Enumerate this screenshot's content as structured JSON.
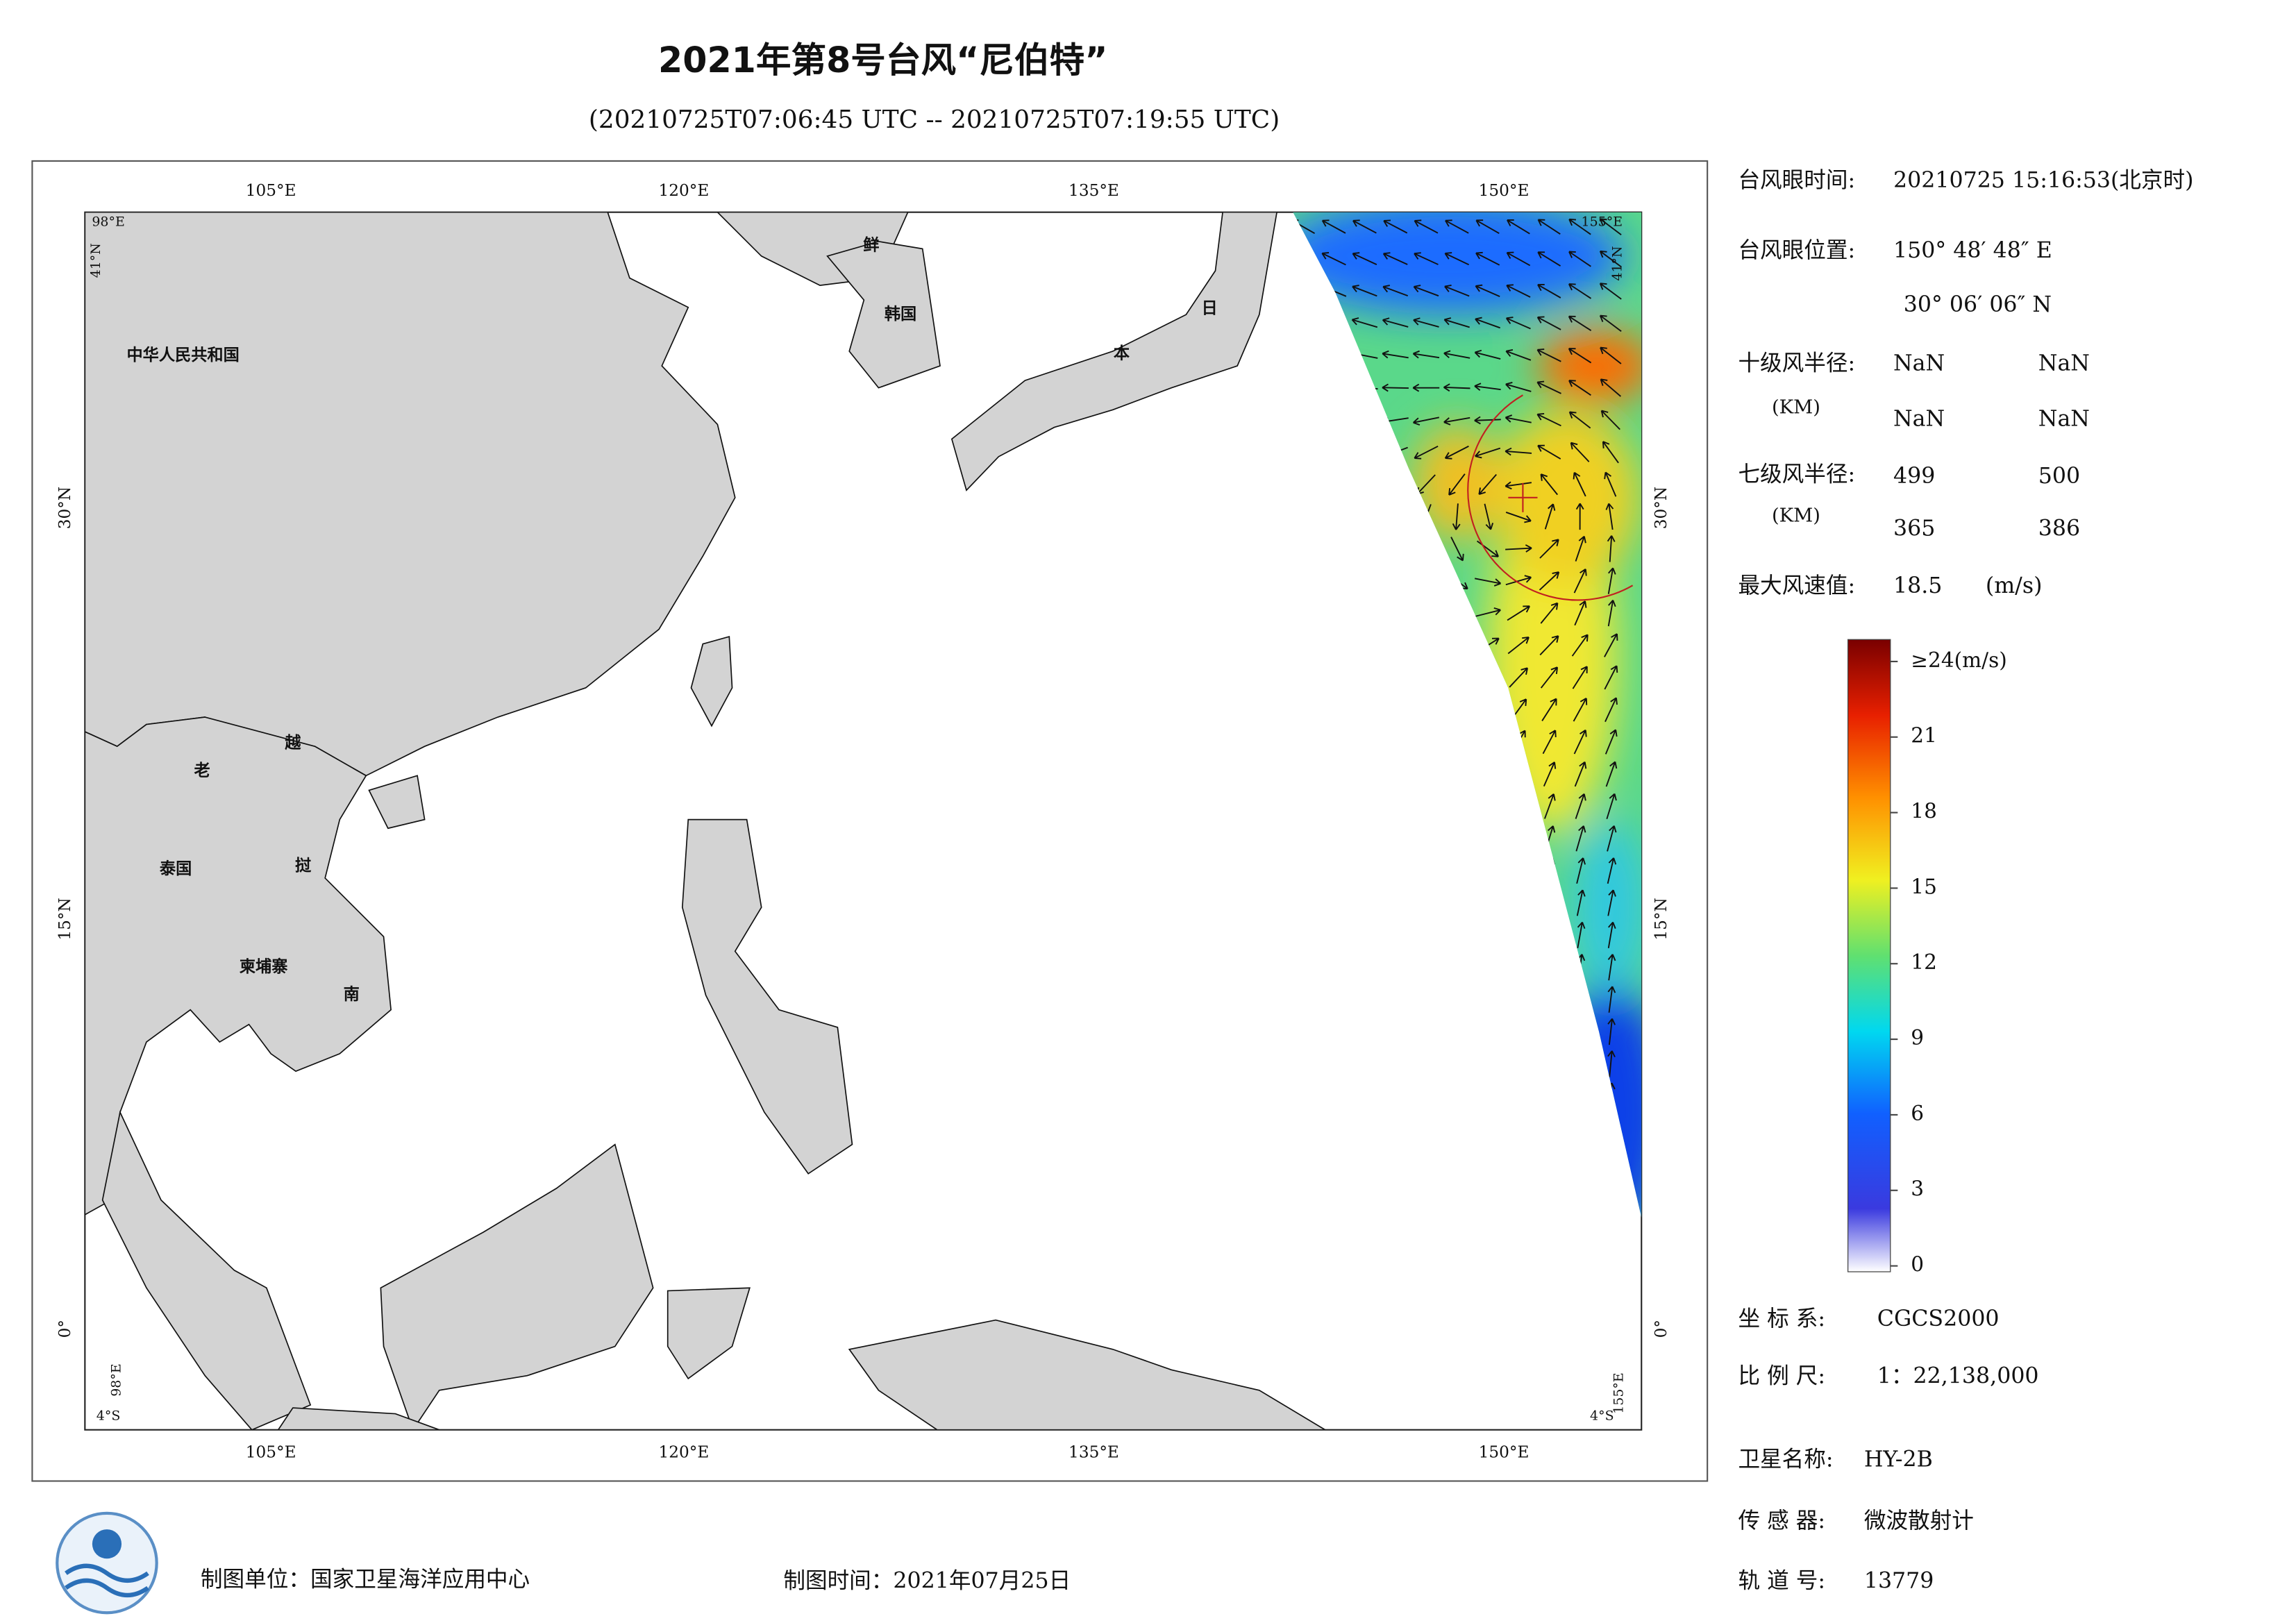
{
  "header": {
    "title": "2021年第8号台风“尼伯特”",
    "subtitle": "(20210725T07:06:45 UTC -- 20210725T07:19:55 UTC)"
  },
  "map": {
    "lon_labels": [
      "105°E",
      "120°E",
      "135°E",
      "150°E"
    ],
    "lat_labels": [
      "30°N",
      "15°N",
      "0°"
    ],
    "corner_labels": [
      "98°E",
      "41°N",
      "155°E",
      "41°N",
      "98°E",
      "4°S",
      "155°E",
      "4°S"
    ],
    "place_labels": [
      "中华人民共和国",
      "鲜",
      "韩国",
      "日",
      "本",
      "老",
      "越",
      "泰国",
      "挝",
      "柬埔寨",
      "南"
    ]
  },
  "panel": {
    "eye_time_label": "台风眼时间:",
    "eye_time": "20210725 15:16:53(北京时)",
    "eye_pos_label": "台风眼位置:",
    "eye_lon": "150° 48′ 48″ E",
    "eye_lat": "30° 06′ 06″ N",
    "r10_label": "十级风半径:",
    "r10_unit": "(KM)",
    "r10": [
      "NaN",
      "NaN",
      "NaN",
      "NaN"
    ],
    "r7_label": "七级风半径:",
    "r7_unit": "(KM)",
    "r7": [
      499,
      500,
      365,
      386
    ],
    "max_wind_label": "最大风速值:",
    "max_wind": 18.5,
    "max_wind_unit": "(m/s)"
  },
  "colorbar": {
    "lim": [
      0,
      24
    ],
    "ticks": [
      0,
      3,
      6,
      9,
      12,
      15,
      18,
      21,
      {
        "value": 24,
        "label": "≥24(m/s)"
      }
    ]
  },
  "meta": {
    "crs_label": "坐 标 系:",
    "crs": "CGCS2000",
    "scale_label": "比 例 尺:",
    "scale": "1：22,138,000",
    "sat_label": "卫星名称:",
    "sat": "HY-2B",
    "sensor_label": "传 感 器:",
    "sensor": "微波散射计",
    "orbit_label": "轨 道 号:",
    "orbit": 13779
  },
  "footer": {
    "producer": "制图单位：国家卫星海洋应用中心",
    "date": "制图时间：2021年07月25日"
  }
}
